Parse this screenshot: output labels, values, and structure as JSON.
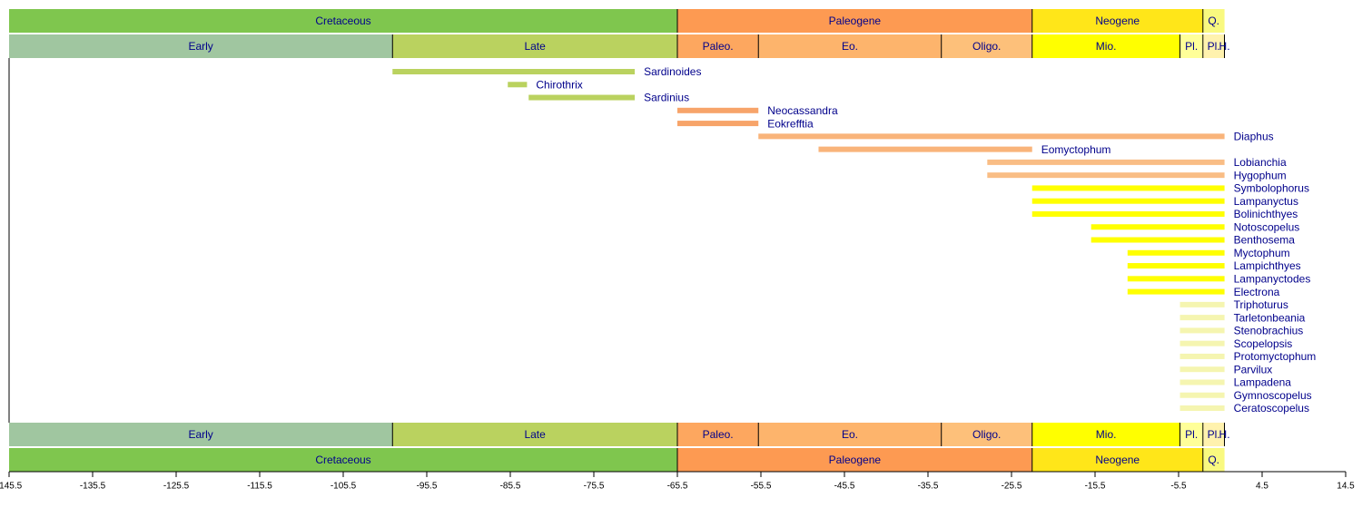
{
  "chart_data": {
    "type": "timeline",
    "xlim": [
      -145.5,
      14.5
    ],
    "xticks": [
      -145.5,
      -135.5,
      -125.5,
      -115.5,
      -105.5,
      -95.5,
      -85.5,
      -75.5,
      -65.5,
      -55.5,
      -45.5,
      -35.5,
      -25.5,
      -15.5,
      -5.5,
      4.5,
      14.5
    ],
    "periods": [
      {
        "name": "Cretaceous",
        "start": -145.5,
        "end": -65.5,
        "color": "#7fc64e"
      },
      {
        "name": "Paleogene",
        "start": -65.5,
        "end": -23.03,
        "color": "#fd9a52"
      },
      {
        "name": "Neogene",
        "start": -23.03,
        "end": -2.588,
        "color": "#ffe619"
      },
      {
        "name": "Q.",
        "start": -2.588,
        "end": 0,
        "color": "#f9f97f"
      }
    ],
    "epochs": [
      {
        "name": "Early",
        "start": -145.5,
        "end": -99.6,
        "color": "#a0c6a0"
      },
      {
        "name": "Late",
        "start": -99.6,
        "end": -65.5,
        "color": "#bad25f"
      },
      {
        "name": "Paleo.",
        "start": -65.5,
        "end": -55.8,
        "color": "#fda75f"
      },
      {
        "name": "Eo.",
        "start": -55.8,
        "end": -33.9,
        "color": "#fdb46c"
      },
      {
        "name": "Oligo.",
        "start": -33.9,
        "end": -23.03,
        "color": "#fdc07a"
      },
      {
        "name": "Mio.",
        "start": -23.03,
        "end": -5.332,
        "color": "#ffff00"
      },
      {
        "name": "Pl.",
        "start": -5.332,
        "end": -2.588,
        "color": "#ffff99"
      },
      {
        "name": "Pl.",
        "start": -2.588,
        "end": -0.0117,
        "color": "#fff2ae"
      },
      {
        "name": "H.",
        "start": -0.0117,
        "end": 0,
        "color": "#fef2e0"
      }
    ],
    "taxa": [
      {
        "name": "Sardinoides",
        "start": -99.6,
        "end": -70.6,
        "color": "#bad25f"
      },
      {
        "name": "Chirothrix",
        "start": -85.8,
        "end": -83.5,
        "color": "#bad25f"
      },
      {
        "name": "Sardinius",
        "start": -83.3,
        "end": -70.6,
        "color": "#bad25f"
      },
      {
        "name": "Neocassandra",
        "start": -65.5,
        "end": -55.8,
        "color": "#f7a46a"
      },
      {
        "name": "Eokrefftia",
        "start": -65.5,
        "end": -55.8,
        "color": "#f7a46a"
      },
      {
        "name": "Diaphus",
        "start": -55.8,
        "end": 0,
        "color": "#f9b47a"
      },
      {
        "name": "Eomyctophum",
        "start": -48.6,
        "end": -23.03,
        "color": "#f9b47a"
      },
      {
        "name": "Lobianchia",
        "start": -28.4,
        "end": 0,
        "color": "#f9bd85"
      },
      {
        "name": "Hygophum",
        "start": -28.4,
        "end": 0,
        "color": "#f9bd85"
      },
      {
        "name": "Symbolophorus",
        "start": -23.03,
        "end": 0,
        "color": "#ffff00"
      },
      {
        "name": "Lampanyctus",
        "start": -23.03,
        "end": 0,
        "color": "#ffff00"
      },
      {
        "name": "Bolinichthyes",
        "start": -23.03,
        "end": 0,
        "color": "#ffff00"
      },
      {
        "name": "Notoscopelus",
        "start": -15.97,
        "end": 0,
        "color": "#ffff00"
      },
      {
        "name": "Benthosema",
        "start": -15.97,
        "end": 0,
        "color": "#ffff00"
      },
      {
        "name": "Myctophum",
        "start": -11.608,
        "end": 0,
        "color": "#ffff00"
      },
      {
        "name": "Lampichthyes",
        "start": -11.608,
        "end": 0,
        "color": "#ffff00"
      },
      {
        "name": "Lampanyctodes",
        "start": -11.608,
        "end": 0,
        "color": "#ffff00"
      },
      {
        "name": "Electrona",
        "start": -11.608,
        "end": 0,
        "color": "#ffff00"
      },
      {
        "name": "Triphoturus",
        "start": -5.332,
        "end": 0,
        "color": "#f5f5b0"
      },
      {
        "name": "Tarletonbeania",
        "start": -5.332,
        "end": 0,
        "color": "#f5f5b0"
      },
      {
        "name": "Stenobrachius",
        "start": -5.332,
        "end": 0,
        "color": "#f5f5b0"
      },
      {
        "name": "Scopelopsis",
        "start": -5.332,
        "end": 0,
        "color": "#f5f5b0"
      },
      {
        "name": "Protomyctophum",
        "start": -5.332,
        "end": 0,
        "color": "#f5f5b0"
      },
      {
        "name": "Parvilux",
        "start": -5.332,
        "end": 0,
        "color": "#f5f5b0"
      },
      {
        "name": "Lampadena",
        "start": -5.332,
        "end": 0,
        "color": "#f5f5b0"
      },
      {
        "name": "Gymnoscopelus",
        "start": -5.332,
        "end": 0,
        "color": "#f5f5b0"
      },
      {
        "name": "Ceratoscopelus",
        "start": -5.332,
        "end": 0,
        "color": "#f5f5b0"
      }
    ]
  }
}
